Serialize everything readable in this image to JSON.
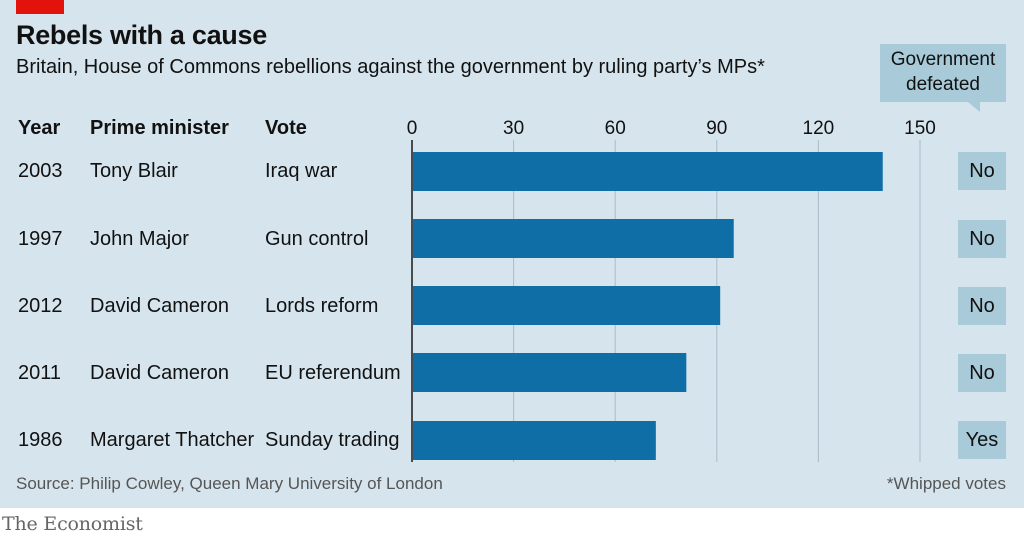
{
  "header": {
    "title": "Rebels with a cause",
    "subtitle": "Britain, House of Commons rebellions against the government by ruling party’s MPs*"
  },
  "columns": {
    "year": "Year",
    "pm": "Prime minister",
    "vote": "Vote",
    "defeated_line1": "Government",
    "defeated_line2": "defeated"
  },
  "rows": [
    {
      "year": "2003",
      "pm": "Tony Blair",
      "vote": "Iraq war",
      "defeated": "No"
    },
    {
      "year": "1997",
      "pm": "John Major",
      "vote": "Gun control",
      "defeated": "No"
    },
    {
      "year": "2012",
      "pm": "David Cameron",
      "vote": "Lords reform",
      "defeated": "No"
    },
    {
      "year": "2011",
      "pm": "David Cameron",
      "vote": "EU referendum",
      "defeated": "No"
    },
    {
      "year": "1986",
      "pm": "Margaret Thatcher",
      "vote": "Sunday trading",
      "defeated": "Yes"
    }
  ],
  "chart_data": {
    "type": "bar",
    "orientation": "horizontal",
    "categories": [
      "Iraq war",
      "Gun control",
      "Lords reform",
      "EU referendum",
      "Sunday trading"
    ],
    "values": [
      139,
      95,
      91,
      81,
      72
    ],
    "xlim": [
      0,
      150
    ],
    "xticks": [
      "0",
      "30",
      "60",
      "90",
      "120",
      "150"
    ],
    "grid": true,
    "bar_color": "#0e6ea5"
  },
  "footer": {
    "source": "Source: Philip Cowley, Queen Mary University of London",
    "footnote": "*Whipped votes",
    "brand": "The Economist"
  },
  "colors": {
    "panel": "#d6e5ed",
    "accent_red": "#e3120b",
    "bar": "#0e6ea5",
    "box": "#a8cad9"
  }
}
